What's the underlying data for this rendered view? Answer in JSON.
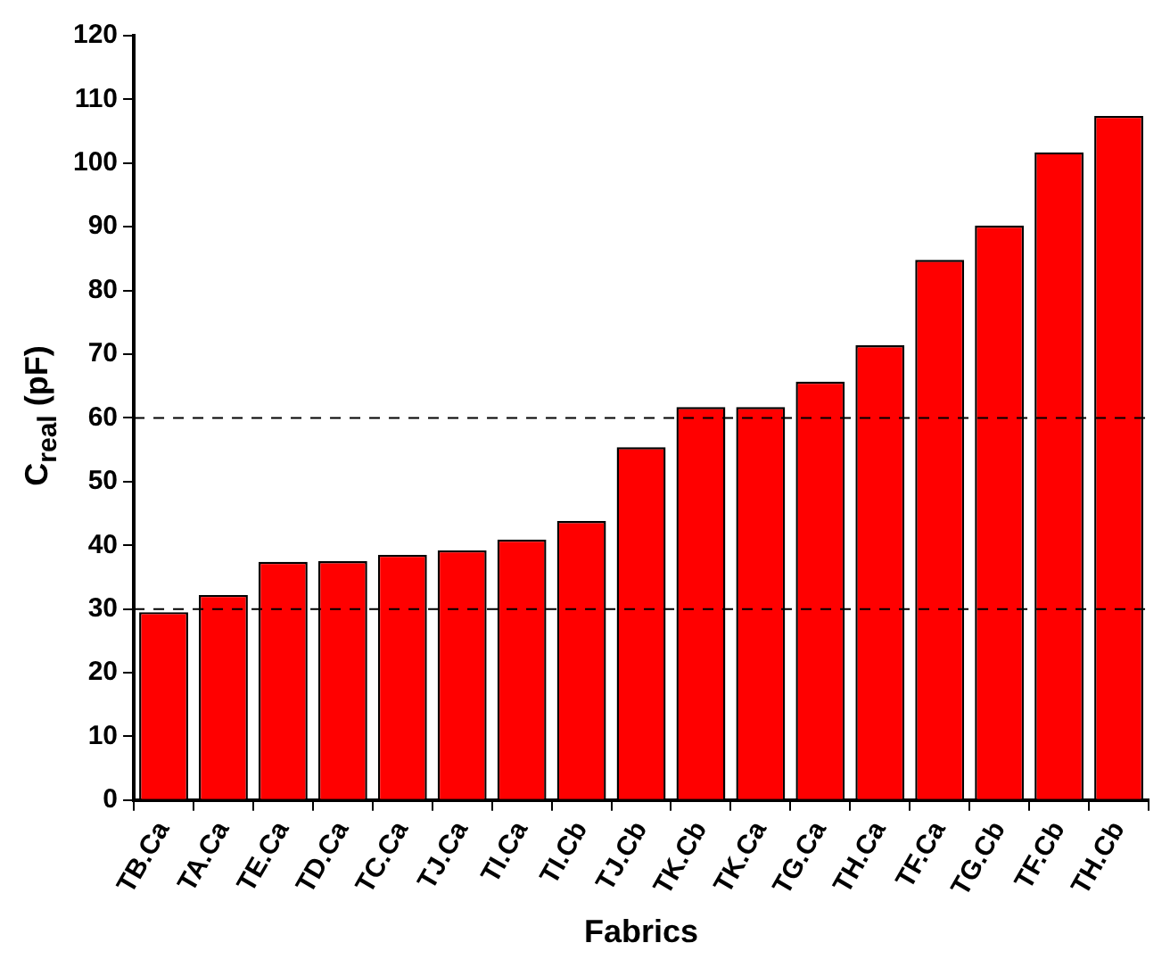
{
  "chart_data": {
    "type": "bar",
    "xlabel": "Fabrics",
    "ylabel": "C$_{real}$ (pF)",
    "categories": [
      "TB.Ca",
      "TA.Ca",
      "TE.Ca",
      "TD.Ca",
      "TC.Ca",
      "TJ.Ca",
      "TI.Ca",
      "TI.Cb",
      "TJ.Cb",
      "TK.Cb",
      "TK.Ca",
      "TG.Ca",
      "TH.Ca",
      "TF.Ca",
      "TG.Cb",
      "TF.Cb",
      "TH.Cb"
    ],
    "values": [
      29.5,
      32.2,
      37.4,
      37.5,
      38.5,
      39.2,
      40.9,
      43.8,
      55.4,
      61.7,
      61.7,
      65.7,
      71.4,
      84.8,
      90.2,
      101.7,
      107.4
    ],
    "color": "#ff0000",
    "ylim": [
      0,
      120
    ],
    "yticks": [
      0,
      10,
      20,
      30,
      40,
      50,
      60,
      70,
      80,
      90,
      100,
      110,
      120
    ],
    "ref_lines": [
      {
        "axis": "y",
        "value": 30,
        "line_style": "dashed"
      },
      {
        "axis": "y",
        "value": 60,
        "line_style": "dashed"
      }
    ]
  }
}
